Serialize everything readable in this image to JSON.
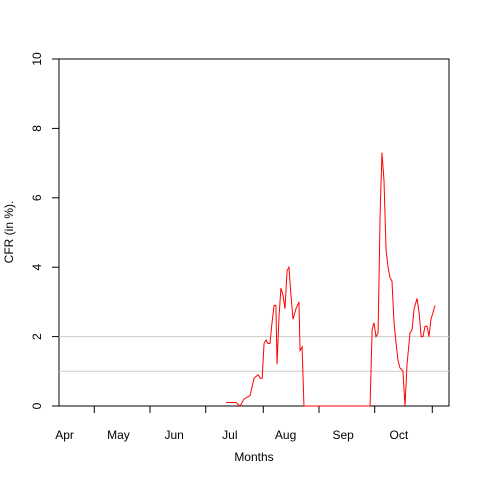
{
  "chart_data": {
    "type": "line",
    "x_label": "Months",
    "y_label": "CFR (in %).",
    "xlim": [
      0,
      210
    ],
    "xticks": [
      {
        "value": 3,
        "label": "Apr"
      },
      {
        "value": 32,
        "label": "May"
      },
      {
        "value": 62,
        "label": "Jun"
      },
      {
        "value": 92,
        "label": "Jul"
      },
      {
        "value": 122,
        "label": "Aug"
      },
      {
        "value": 153,
        "label": "Sep"
      },
      {
        "value": 183,
        "label": "Oct"
      }
    ],
    "xtick_marks": [
      19,
      49,
      79,
      110,
      140,
      170,
      201
    ],
    "ylim": [
      0,
      10
    ],
    "yticks": [
      0,
      2,
      4,
      6,
      8,
      10
    ],
    "reference_lines": [
      1,
      2
    ],
    "reference_color": "#cccccc",
    "series": [
      {
        "color": "#ff0000",
        "x": [
          89.9,
          95.3,
          97.5,
          99.6,
          102.9,
          105.0,
          107.2,
          108.3,
          109.4,
          110.4,
          111.5,
          112.5,
          113.6,
          114.7,
          115.8,
          116.8,
          117.4,
          118.5,
          119.5,
          120.6,
          121.7,
          122.8,
          123.8,
          124.9,
          126.0,
          127.6,
          129.2,
          129.8,
          130.9,
          131.9,
          167.5,
          168.6,
          169.6,
          170.7,
          171.8,
          172.9,
          173.9,
          175.0,
          176.1,
          177.2,
          178.2,
          179.3,
          180.4,
          181.5,
          182.6,
          183.6,
          185.2,
          186.3,
          187.4,
          189.0,
          190.1,
          191.2,
          192.8,
          193.9,
          195.0,
          196.0,
          197.1,
          198.2,
          199.2,
          200.3,
          202.5
        ],
        "values": [
          0.1,
          0.1,
          0,
          0.2,
          0.3,
          0.8,
          0.9,
          0.8,
          0.8,
          1.8,
          1.9,
          1.8,
          1.8,
          2.4,
          2.9,
          2.9,
          1.2,
          2.6,
          3.4,
          3.2,
          2.8,
          3.9,
          4.0,
          3.2,
          2.5,
          2.8,
          3.0,
          1.6,
          1.7,
          0,
          0,
          2.2,
          2.4,
          2.0,
          2.1,
          5.5,
          7.3,
          6.5,
          4.5,
          4.0,
          3.7,
          3.6,
          2.4,
          1.8,
          1.3,
          1.1,
          1.0,
          0,
          1.2,
          2.1,
          2.2,
          2.8,
          3.1,
          2.7,
          2.0,
          2.0,
          2.3,
          2.3,
          2.0,
          2.5,
          2.9
        ]
      }
    ]
  }
}
